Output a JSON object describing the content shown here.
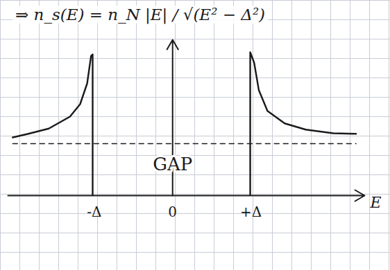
{
  "chart_data": {
    "type": "line",
    "title": "⇒ n_s(E) = n_N |E| / √(E² − Δ²)",
    "x_label": "E",
    "color": "#1a1a1a",
    "x": [
      -2.04,
      -1.84,
      -1.58,
      -1.31,
      -1.18,
      -1.09,
      -1.04,
      -1.02,
      -1.02,
      0,
      0.99,
      0.99,
      1.04,
      1.1,
      1.21,
      1.43,
      1.7,
      2.05,
      2.34
    ],
    "series": [
      {
        "color": "#1a1a1a",
        "line_style": "solid",
        "values": [
          1.12,
          1.19,
          1.29,
          1.52,
          1.76,
          2.16,
          2.69,
          2.72,
          0,
          null,
          0,
          2.76,
          2.56,
          2.03,
          1.63,
          1.39,
          1.27,
          1.2,
          1.19
        ]
      },
      {
        "color": "#1a1a1a",
        "line_style": "dashed",
        "values": [
          1,
          1,
          1,
          1,
          1,
          1,
          1,
          1,
          1,
          1,
          1,
          1,
          1,
          1,
          1,
          1,
          1,
          1,
          1
        ]
      }
    ],
    "xlim": [
      -2.1,
      2.45
    ],
    "xticks": [
      {
        "value": -1,
        "label": "-Δ"
      },
      0,
      {
        "value": 1,
        "label": "+Δ"
      }
    ],
    "ylim": [
      0,
      3
    ],
    "tick_labels": "x",
    "annotations": [
      {
        "text": "GAP",
        "x": 0,
        "y": 0.6
      }
    ]
  }
}
